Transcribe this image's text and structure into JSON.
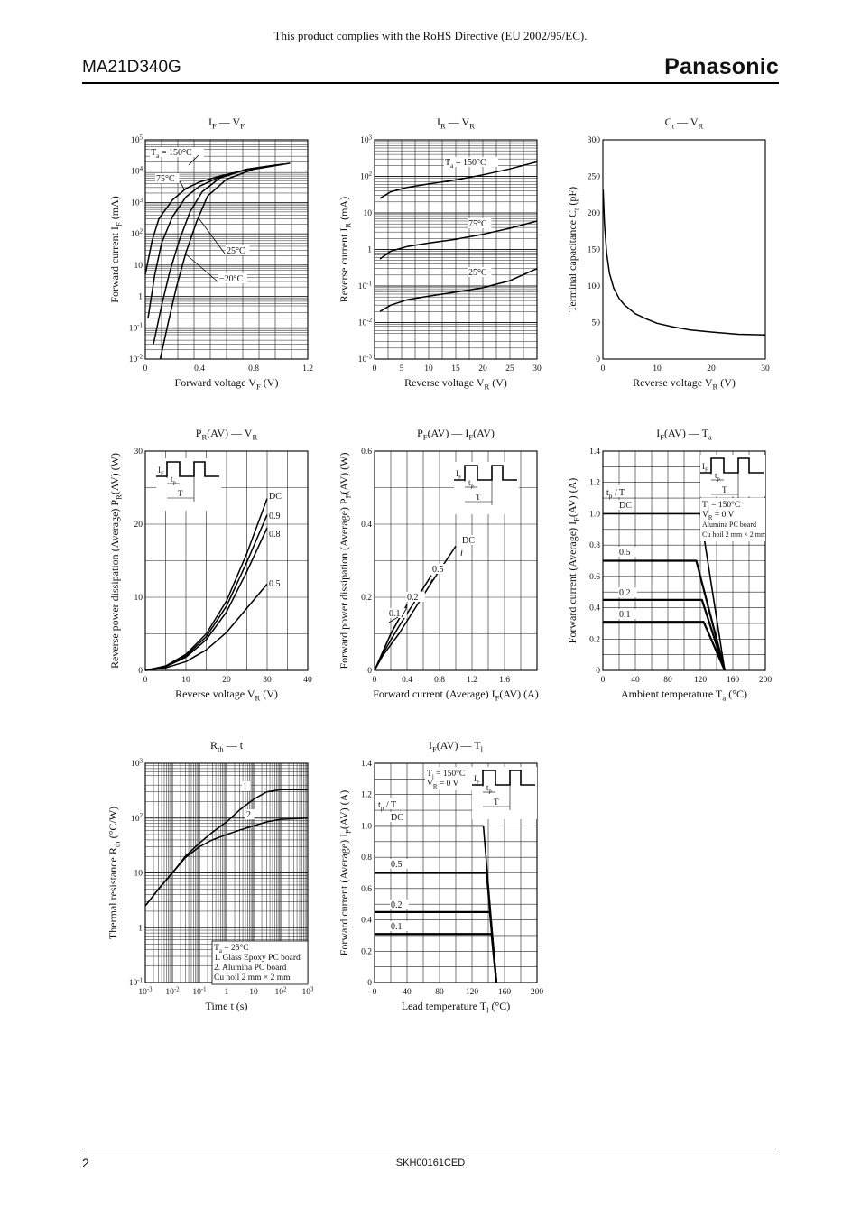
{
  "page": {
    "header_note": "This product complies with the RoHS Directive (EU 2002/95/EC).",
    "part_number": "MA21D340G",
    "brand": "Panasonic",
    "page_number": "2",
    "doc_code": "SKH00161CED"
  },
  "chart_data": [
    {
      "id": "if-vf",
      "type": "line",
      "title": "I_F — V_F",
      "xlabel": "Forward voltage V_F (V)",
      "ylabel": "Forward current I_F (mA)",
      "xlim": [
        0,
        1.2
      ],
      "ylim": [
        0.01,
        100000
      ],
      "yscale": "log",
      "grid": true,
      "xticks": [
        "0",
        "0.4",
        "0.8",
        "1.2"
      ],
      "yticks": [
        "10^-2",
        "10^-1",
        "1",
        "10",
        "10^2",
        "10^3",
        "10^4",
        "10^5"
      ],
      "series": [
        {
          "name": "Ta = 150°C",
          "x": [
            0.0,
            0.05,
            0.1,
            0.2,
            0.3,
            0.4,
            0.55,
            0.75,
            0.95
          ],
          "y": [
            5,
            60,
            300,
            1200,
            2800,
            4500,
            7000,
            11000,
            15000
          ]
        },
        {
          "name": "75°C",
          "x": [
            0.02,
            0.07,
            0.12,
            0.2,
            0.3,
            0.4,
            0.55,
            0.75,
            0.98
          ],
          "y": [
            0.2,
            5,
            50,
            350,
            1500,
            3300,
            6500,
            11500,
            16000
          ]
        },
        {
          "name": "25°C",
          "x": [
            0.06,
            0.12,
            0.18,
            0.25,
            0.33,
            0.42,
            0.55,
            0.75,
            1.02
          ],
          "y": [
            0.03,
            0.5,
            6,
            60,
            500,
            2200,
            6000,
            11500,
            17000
          ]
        },
        {
          "name": "−20°C",
          "x": [
            0.11,
            0.17,
            0.23,
            0.3,
            0.38,
            0.46,
            0.6,
            0.8,
            1.07
          ],
          "y": [
            0.01,
            0.15,
            2,
            25,
            250,
            1600,
            5500,
            11500,
            18000
          ]
        }
      ]
    },
    {
      "id": "ir-vr",
      "type": "line",
      "title": "I_R — V_R",
      "xlabel": "Reverse voltage V_R (V)",
      "ylabel": "Reverse current I_R (mA)",
      "xlim": [
        0,
        30
      ],
      "ylim": [
        0.001,
        1000
      ],
      "yscale": "log",
      "grid": true,
      "xticks": [
        "0",
        "5",
        "10",
        "15",
        "20",
        "25",
        "30"
      ],
      "yticks": [
        "10^-3",
        "10^-2",
        "10^-1",
        "1",
        "10",
        "10^2",
        "10^3"
      ],
      "series": [
        {
          "name": "Ta = 150°C",
          "x": [
            1,
            3,
            6,
            10,
            15,
            20,
            25,
            30
          ],
          "y": [
            25,
            38,
            50,
            62,
            80,
            110,
            160,
            250
          ]
        },
        {
          "name": "75°C",
          "x": [
            1,
            3,
            6,
            10,
            15,
            20,
            25,
            30
          ],
          "y": [
            0.55,
            0.9,
            1.2,
            1.5,
            1.9,
            2.6,
            3.8,
            6
          ]
        },
        {
          "name": "25°C",
          "x": [
            1,
            3,
            6,
            10,
            15,
            20,
            25,
            30
          ],
          "y": [
            0.02,
            0.03,
            0.042,
            0.053,
            0.068,
            0.09,
            0.14,
            0.3
          ]
        }
      ]
    },
    {
      "id": "ct-vr",
      "type": "line",
      "title": "C_t — V_R",
      "xlabel": "Reverse voltage V_R (V)",
      "ylabel": "Terminal capacitance C_t (pF)",
      "xlim": [
        0,
        30
      ],
      "ylim": [
        0,
        300
      ],
      "grid": false,
      "xticks": [
        "0",
        "10",
        "20",
        "30"
      ],
      "yticks": [
        "0",
        "50",
        "100",
        "150",
        "200",
        "250",
        "300"
      ],
      "series": [
        {
          "name": "",
          "x": [
            0.05,
            0.3,
            0.7,
            1.2,
            2,
            3,
            4,
            5,
            6,
            8,
            10,
            13,
            16,
            20,
            25,
            30
          ],
          "y": [
            232,
            185,
            145,
            118,
            97,
            83,
            74,
            68,
            62,
            55,
            49,
            44,
            40,
            37,
            34,
            33
          ]
        }
      ]
    },
    {
      "id": "pr-vr",
      "type": "line",
      "title": "P_R(AV) — V_R",
      "xlabel": "Reverse voltage V_R (V)",
      "ylabel": "Reverse power dissipation (Average) P_R(AV) (W)",
      "xlim": [
        0,
        40
      ],
      "ylim": [
        0,
        30
      ],
      "grid": true,
      "xticks": [
        "0",
        "10",
        "20",
        "30",
        "40"
      ],
      "yticks": [
        "0",
        "10",
        "20",
        "30"
      ],
      "inset_labels": [
        "I_F",
        "t_p",
        "T"
      ],
      "series": [
        {
          "name": "DC",
          "x": [
            0,
            5,
            10,
            15,
            20,
            25,
            30
          ],
          "y": [
            0,
            0.6,
            2.2,
            5,
            9.5,
            16,
            23.5
          ]
        },
        {
          "name": "0.9",
          "x": [
            0,
            5,
            10,
            15,
            20,
            25,
            30
          ],
          "y": [
            0,
            0.55,
            2,
            4.6,
            8.8,
            14.8,
            21.3
          ]
        },
        {
          "name": "0.8",
          "x": [
            0,
            5,
            10,
            15,
            20,
            25,
            30
          ],
          "y": [
            0,
            0.5,
            1.8,
            4.2,
            8,
            13.5,
            19.5
          ]
        },
        {
          "name": "0.5",
          "x": [
            0,
            5,
            10,
            15,
            20,
            25,
            30
          ],
          "y": [
            0,
            0.35,
            1.2,
            2.8,
            5.2,
            8.5,
            11.8
          ]
        }
      ]
    },
    {
      "id": "pf-if",
      "type": "line",
      "title": "P_F(AV) — I_F(AV)",
      "xlabel": "Forward current (Average) I_F(AV) (A)",
      "ylabel": "Forward power dissipation (Average) P_F(AV) (W)",
      "xlim": [
        0,
        2.0
      ],
      "ylim": [
        0,
        0.6
      ],
      "grid": true,
      "xticks": [
        "0",
        "0.4",
        "0.8",
        "1.2",
        "1.6"
      ],
      "yticks": [
        "0",
        "0.2",
        "0.4",
        "0.6"
      ],
      "inset_labels": [
        "I_F",
        "t_p",
        "T"
      ],
      "series": [
        {
          "name": "DC",
          "x": [
            0,
            0.1,
            0.3,
            0.5,
            0.7,
            1.0
          ],
          "y": [
            0,
            0.04,
            0.1,
            0.17,
            0.24,
            0.34
          ]
        },
        {
          "name": "0.5",
          "x": [
            0,
            0.1,
            0.3,
            0.5,
            0.7
          ],
          "y": [
            0,
            0.045,
            0.12,
            0.19,
            0.26
          ]
        },
        {
          "name": "0.2",
          "x": [
            0,
            0.1,
            0.2,
            0.3,
            0.4
          ],
          "y": [
            0,
            0.05,
            0.1,
            0.14,
            0.18
          ]
        },
        {
          "name": "0.1",
          "x": [
            0,
            0.1,
            0.2,
            0.3
          ],
          "y": [
            0,
            0.05,
            0.1,
            0.14
          ]
        }
      ]
    },
    {
      "id": "if-ta",
      "type": "line",
      "title": "I_F(AV) — T_a",
      "xlabel": "Ambient temperature T_a (°C)",
      "ylabel": "Forward current (Average) I_F(AV) (A)",
      "xlim": [
        0,
        200
      ],
      "ylim": [
        0,
        1.4
      ],
      "grid": true,
      "xticks": [
        "0",
        "40",
        "80",
        "120",
        "160",
        "200"
      ],
      "yticks": [
        "0",
        "0.2",
        "0.4",
        "0.6",
        "0.8",
        "1.0",
        "1.2",
        "1.4"
      ],
      "legend_label": "t_p / T",
      "notes": [
        "T_j = 150°C",
        "V_R = 0 V",
        "Alumina PC board",
        "Cu hoil 2 mm × 2 mm"
      ],
      "inset_labels": [
        "I_F",
        "t_p",
        "T"
      ],
      "series": [
        {
          "name": "DC",
          "x": [
            0,
            120,
            150
          ],
          "y": [
            1.0,
            1.0,
            0
          ]
        },
        {
          "name": "0.5",
          "x": [
            0,
            115,
            150
          ],
          "y": [
            0.7,
            0.7,
            0
          ]
        },
        {
          "name": "0.2",
          "x": [
            0,
            122,
            150
          ],
          "y": [
            0.45,
            0.45,
            0
          ]
        },
        {
          "name": "0.1",
          "x": [
            0,
            124,
            150
          ],
          "y": [
            0.31,
            0.31,
            0
          ]
        }
      ]
    },
    {
      "id": "rth-t",
      "type": "line",
      "title": "R_th — t",
      "xlabel": "Time t (s)",
      "ylabel": "Thermal resistance R_th (°C/W)",
      "xlim": [
        0.001,
        1000
      ],
      "ylim": [
        0.1,
        1000
      ],
      "xscale": "log",
      "yscale": "log",
      "grid": true,
      "xticks": [
        "10^-3",
        "10^-2",
        "10^-1",
        "1",
        "10",
        "10^2",
        "10^3"
      ],
      "yticks": [
        "10^-1",
        "1",
        "10",
        "10^2",
        "10^3"
      ],
      "notes": [
        "T_a = 25°C",
        "1. Glass Epoxy PC board",
        "2. Alumina PC board",
        "Cu hoil 2 mm × 2 mm"
      ],
      "series": [
        {
          "name": "1",
          "x": [
            0.001,
            0.003,
            0.01,
            0.03,
            0.1,
            0.3,
            1,
            3,
            10,
            30,
            100,
            1000
          ],
          "y": [
            2.5,
            5,
            10,
            20,
            35,
            55,
            85,
            140,
            220,
            300,
            330,
            330
          ]
        },
        {
          "name": "2",
          "x": [
            0.001,
            0.003,
            0.01,
            0.03,
            0.1,
            0.3,
            1,
            3,
            10,
            30,
            100,
            1000
          ],
          "y": [
            2.5,
            5,
            10,
            19,
            30,
            40,
            50,
            60,
            72,
            85,
            95,
            100
          ]
        }
      ]
    },
    {
      "id": "if-tl",
      "type": "line",
      "title": "I_F(AV) — T_l",
      "xlabel": "Lead temperature T_l (°C)",
      "ylabel": "Forward current (Average) I_F(AV) (A)",
      "xlim": [
        0,
        200
      ],
      "ylim": [
        0,
        1.4
      ],
      "grid": true,
      "xticks": [
        "0",
        "40",
        "80",
        "120",
        "160",
        "200"
      ],
      "yticks": [
        "0",
        "0.2",
        "0.4",
        "0.6",
        "0.8",
        "1.0",
        "1.2",
        "1.4"
      ],
      "legend_label": "t_p / T",
      "notes": [
        "T_j = 150°C",
        "V_R = 0 V"
      ],
      "inset_labels": [
        "I_F",
        "t_p",
        "T"
      ],
      "series": [
        {
          "name": "DC",
          "x": [
            0,
            134,
            150
          ],
          "y": [
            1.0,
            1.0,
            0
          ]
        },
        {
          "name": "0.5",
          "x": [
            0,
            138,
            150
          ],
          "y": [
            0.7,
            0.7,
            0
          ]
        },
        {
          "name": "0.2",
          "x": [
            0,
            142,
            150
          ],
          "y": [
            0.45,
            0.45,
            0
          ]
        },
        {
          "name": "0.1",
          "x": [
            0,
            144,
            150
          ],
          "y": [
            0.31,
            0.31,
            0
          ]
        }
      ]
    }
  ]
}
